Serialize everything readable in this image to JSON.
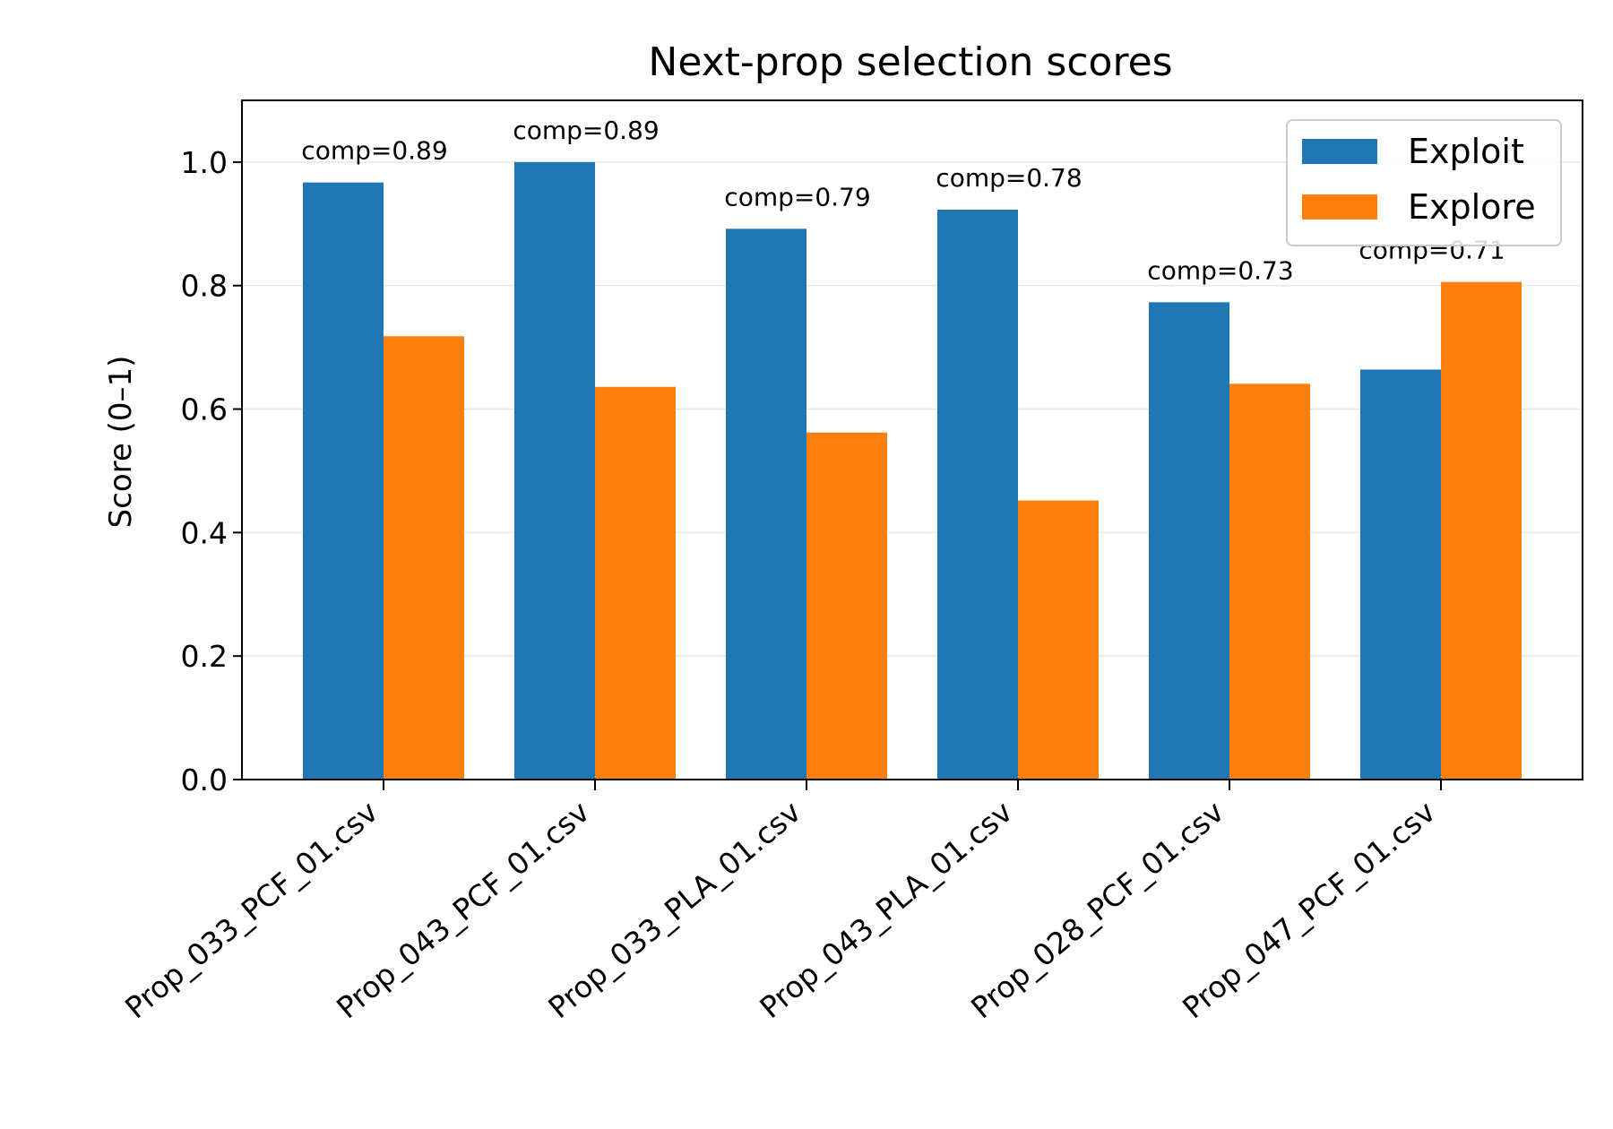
{
  "chart_data": {
    "type": "bar",
    "title": "Next-prop selection scores",
    "xlabel": "",
    "ylabel": "Score (0–1)",
    "ylim": [
      0,
      1.1
    ],
    "yticks": [
      "0.0",
      "0.2",
      "0.4",
      "0.6",
      "0.8",
      "1.0"
    ],
    "grid": "y",
    "legend_position": "top-right",
    "categories": [
      "Prop_033_PCF_01.csv",
      "Prop_043_PCF_01.csv",
      "Prop_033_PLA_01.csv",
      "Prop_043_PLA_01.csv",
      "Prop_028_PCF_01.csv",
      "Prop_047_PCF_01.csv"
    ],
    "series": [
      {
        "name": "Exploit",
        "color": "#1f77b4",
        "values": [
          0.967,
          1.0,
          0.892,
          0.923,
          0.773,
          0.664
        ]
      },
      {
        "name": "Explore",
        "color": "#ff7f0e",
        "values": [
          0.718,
          0.636,
          0.562,
          0.452,
          0.641,
          0.806
        ]
      }
    ],
    "annotations": [
      "comp=0.89",
      "comp=0.89",
      "comp=0.79",
      "comp=0.78",
      "comp=0.73",
      "comp=0.71"
    ]
  }
}
